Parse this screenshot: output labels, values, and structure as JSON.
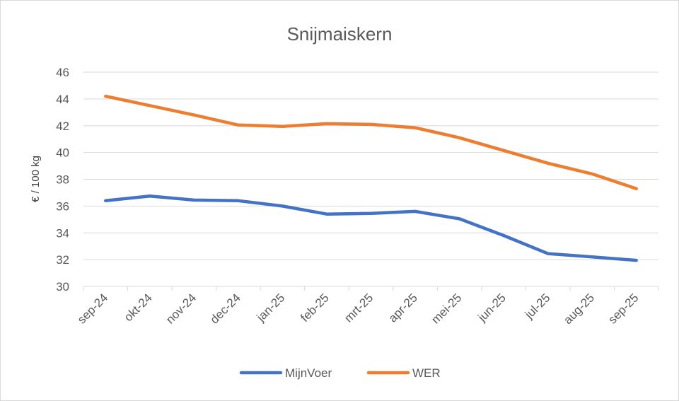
{
  "chart_data": {
    "type": "line",
    "title": "Snijmaiskern",
    "xlabel": "",
    "ylabel": "€ / 100 kg",
    "categories": [
      "sep-24",
      "okt-24",
      "nov-24",
      "dec-24",
      "jan-25",
      "feb-25",
      "mrt-25",
      "apr-25",
      "mei-25",
      "jun-25",
      "jul-25",
      "aug-25",
      "sep-25"
    ],
    "yticks": [
      "30",
      "32",
      "34",
      "36",
      "38",
      "40",
      "42",
      "44",
      "46"
    ],
    "ylim": [
      30,
      46
    ],
    "grid": true,
    "legend_position": "bottom",
    "series": [
      {
        "name": "MijnVoer",
        "color": "#4472c4",
        "values": [
          36.4,
          36.75,
          36.45,
          36.4,
          36.0,
          35.4,
          35.45,
          35.6,
          35.05,
          33.8,
          32.45,
          32.2,
          31.95
        ]
      },
      {
        "name": "WER",
        "color": "#ed7d31",
        "values": [
          44.2,
          43.5,
          42.8,
          42.05,
          41.95,
          42.15,
          42.1,
          41.85,
          41.1,
          40.15,
          39.2,
          38.4,
          37.3
        ]
      }
    ]
  }
}
